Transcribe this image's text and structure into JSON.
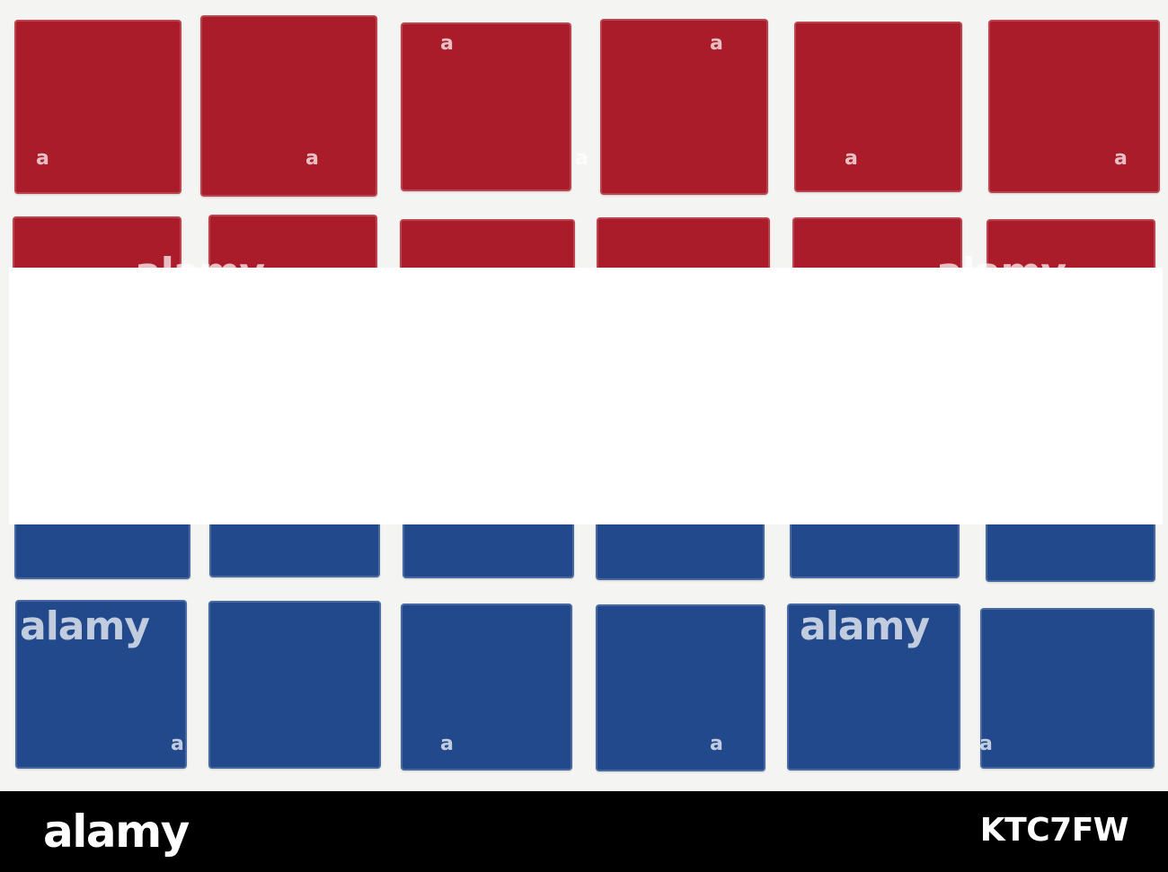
{
  "flag_colors": {
    "red": "#ab1c2a",
    "white": "#ffffff",
    "blue": "#22498c"
  },
  "watermark": {
    "brand": "alamy",
    "image_id": "KTC7FW",
    "small_mark": "a"
  }
}
